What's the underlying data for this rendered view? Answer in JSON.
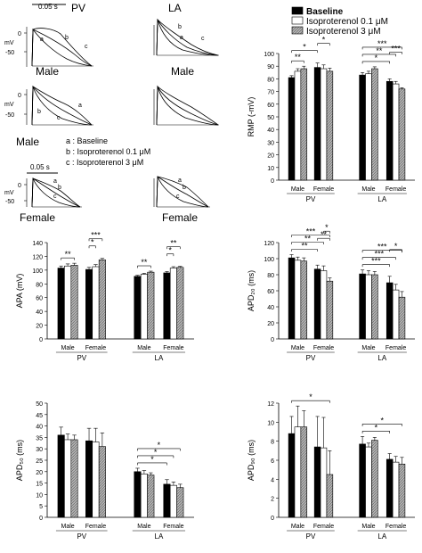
{
  "colors": {
    "baseline": "#000000",
    "iso01": "#ffffff",
    "iso3": "#a8a8a8",
    "stroke": "#000000"
  },
  "traces": {
    "headers": [
      "PV",
      "LA"
    ],
    "scale_top": "0.05 s",
    "scale_mid": "0.05 s",
    "row_labels": [
      "Male",
      "Male",
      "Female",
      "Female"
    ],
    "row_labels_mid_left": "Male",
    "mv_label": "mV",
    "tick_zero": "0",
    "tick_neg50": "-50",
    "trace_letters": [
      "a",
      "b",
      "c"
    ],
    "key": {
      "a": "a : Baseline",
      "b": "b : Isoproterenol 0.1 μM",
      "c": "c : Isoproterenol 3 μM"
    }
  },
  "legend": [
    "Baseline",
    "Isoproterenol 0.1 μM",
    "Isoproterenol 3 μM"
  ],
  "chart_data": [
    {
      "type": "bar",
      "ylabel": "RMP (-mV)",
      "ylim": [
        0,
        100
      ],
      "yticks": [
        0,
        10,
        20,
        30,
        40,
        50,
        60,
        70,
        80,
        90,
        100
      ],
      "subgroups": [
        "Male",
        "Female",
        "Male",
        "Female"
      ],
      "groups": [
        "PV",
        "LA"
      ],
      "series": [
        {
          "name": "Baseline",
          "values": [
            81,
            89,
            83,
            78
          ],
          "errors": [
            1.5,
            3.5,
            2,
            2
          ]
        },
        {
          "name": "Isoproterenol 0.1 μM",
          "values": [
            86,
            88,
            84,
            76
          ],
          "errors": [
            2,
            3,
            2,
            2
          ]
        },
        {
          "name": "Isoproterenol 3 μM",
          "values": [
            88,
            86,
            88,
            72
          ],
          "errors": [
            2,
            2.5,
            1.5,
            1
          ]
        }
      ],
      "significance": [
        {
          "from": [
            0,
            0
          ],
          "to": [
            0,
            2
          ],
          "label": "**"
        },
        {
          "from": [
            0,
            0
          ],
          "to": [
            1,
            0
          ],
          "label": "*"
        },
        {
          "from": [
            1,
            0
          ],
          "to": [
            1,
            2
          ],
          "label": "*"
        },
        {
          "from": [
            2,
            0
          ],
          "to": [
            3,
            0
          ],
          "label": "*"
        },
        {
          "from": [
            2,
            0
          ],
          "to": [
            3,
            1
          ],
          "label": "**"
        },
        {
          "from": [
            2,
            0
          ],
          "to": [
            3,
            2
          ],
          "label": "***"
        },
        {
          "from": [
            3,
            0
          ],
          "to": [
            3,
            2
          ],
          "label": "***"
        }
      ]
    },
    {
      "type": "bar",
      "ylabel": "APA (mV)",
      "ylim": [
        0,
        140
      ],
      "yticks": [
        0,
        20,
        40,
        60,
        80,
        100,
        120,
        140
      ],
      "subgroups": [
        "Male",
        "Female",
        "Male",
        "Female"
      ],
      "groups": [
        "PV",
        "LA"
      ],
      "series": [
        {
          "name": "Baseline",
          "values": [
            103,
            101,
            91,
            96
          ],
          "errors": [
            3,
            3,
            1.5,
            2
          ]
        },
        {
          "name": "Isoproterenol 0.1 μM",
          "values": [
            106,
            105,
            94,
            103
          ],
          "errors": [
            3,
            3,
            1.5,
            2
          ]
        },
        {
          "name": "Isoproterenol 3 μM",
          "values": [
            107,
            115,
            97,
            104
          ],
          "errors": [
            3,
            2,
            1.5,
            1.5
          ]
        }
      ],
      "significance": [
        {
          "from": [
            0,
            0
          ],
          "to": [
            0,
            2
          ],
          "label": "**"
        },
        {
          "from": [
            1,
            0
          ],
          "to": [
            1,
            1
          ],
          "label": "*"
        },
        {
          "from": [
            1,
            0
          ],
          "to": [
            1,
            2
          ],
          "label": "***"
        },
        {
          "from": [
            2,
            0
          ],
          "to": [
            2,
            2
          ],
          "label": "**"
        },
        {
          "from": [
            3,
            0
          ],
          "to": [
            3,
            1
          ],
          "label": "*"
        },
        {
          "from": [
            3,
            0
          ],
          "to": [
            3,
            2
          ],
          "label": "**"
        }
      ]
    },
    {
      "type": "bar",
      "ylabel": "APD₂₀ (ms)",
      "ylim": [
        0,
        120
      ],
      "yticks": [
        0,
        20,
        40,
        60,
        80,
        100,
        120
      ],
      "subgroups": [
        "Male",
        "Female",
        "Male",
        "Female"
      ],
      "groups": [
        "PV",
        "LA"
      ],
      "series": [
        {
          "name": "Baseline",
          "values": [
            101,
            87,
            81,
            70
          ],
          "errors": [
            4,
            5,
            5,
            8
          ]
        },
        {
          "name": "Isoproterenol 0.1 μM",
          "values": [
            98,
            85,
            80,
            61
          ],
          "errors": [
            4,
            6,
            5,
            7
          ]
        },
        {
          "name": "Isoproterenol 3 μM",
          "values": [
            97,
            72,
            80,
            52
          ],
          "errors": [
            4,
            4,
            4,
            7
          ]
        }
      ],
      "significance": [
        {
          "from": [
            0,
            0
          ],
          "to": [
            1,
            0
          ],
          "label": "**"
        },
        {
          "from": [
            0,
            0
          ],
          "to": [
            1,
            1
          ],
          "label": "**"
        },
        {
          "from": [
            0,
            0
          ],
          "to": [
            1,
            2
          ],
          "label": "***"
        },
        {
          "from": [
            1,
            0
          ],
          "to": [
            1,
            2
          ],
          "label": "**"
        },
        {
          "from": [
            1,
            1
          ],
          "to": [
            1,
            2
          ],
          "label": "*"
        },
        {
          "from": [
            2,
            0
          ],
          "to": [
            3,
            0
          ],
          "label": "***"
        },
        {
          "from": [
            2,
            0
          ],
          "to": [
            3,
            1
          ],
          "label": "***"
        },
        {
          "from": [
            2,
            0
          ],
          "to": [
            3,
            2
          ],
          "label": "***"
        },
        {
          "from": [
            3,
            0
          ],
          "to": [
            3,
            2
          ],
          "label": "*"
        }
      ]
    },
    {
      "type": "bar",
      "ylabel": "APD₅₀ (ms)",
      "ylim": [
        0,
        50
      ],
      "yticks": [
        0,
        5,
        10,
        15,
        20,
        25,
        30,
        35,
        40,
        45,
        50
      ],
      "subgroups": [
        "Male",
        "Female",
        "Male",
        "Female"
      ],
      "groups": [
        "PV",
        "LA"
      ],
      "series": [
        {
          "name": "Baseline",
          "values": [
            36,
            33.5,
            20,
            14.5
          ],
          "errors": [
            3.5,
            5.5,
            1.5,
            2
          ]
        },
        {
          "name": "Isoproterenol 0.1 μM",
          "values": [
            34,
            33,
            19,
            14
          ],
          "errors": [
            2.5,
            6,
            1.5,
            1.5
          ]
        },
        {
          "name": "Isoproterenol 3 μM",
          "values": [
            34,
            31,
            18.5,
            13
          ],
          "errors": [
            2,
            6,
            1,
            1.5
          ]
        }
      ],
      "significance": [
        {
          "from": [
            2,
            0
          ],
          "to": [
            3,
            0
          ],
          "label": "*"
        },
        {
          "from": [
            2,
            0
          ],
          "to": [
            3,
            1
          ],
          "label": "*"
        },
        {
          "from": [
            2,
            0
          ],
          "to": [
            3,
            2
          ],
          "label": "*"
        }
      ]
    },
    {
      "type": "bar",
      "ylabel": "APD₉₀ (ms)",
      "ylim": [
        0,
        12
      ],
      "yticks": [
        0,
        2,
        4,
        6,
        8,
        10,
        12
      ],
      "subgroups": [
        "Male",
        "Female",
        "Male",
        "Female"
      ],
      "groups": [
        "PV",
        "LA"
      ],
      "series": [
        {
          "name": "Baseline",
          "values": [
            8.8,
            7.4,
            7.7,
            6.1
          ],
          "errors": [
            1.8,
            3.2,
            0.8,
            0.6
          ]
        },
        {
          "name": "Isoproterenol 0.1 μM",
          "values": [
            9.5,
            7.3,
            7.4,
            5.8
          ],
          "errors": [
            2.2,
            3.2,
            0.4,
            0.6
          ]
        },
        {
          "name": "Isoproterenol 3 μM",
          "values": [
            9.5,
            4.5,
            8.1,
            5.6
          ],
          "errors": [
            1.7,
            2.5,
            0.3,
            0.7
          ]
        }
      ],
      "significance": [
        {
          "from": [
            0,
            0
          ],
          "to": [
            1,
            2
          ],
          "label": "*"
        },
        {
          "from": [
            2,
            0
          ],
          "to": [
            3,
            0
          ],
          "label": "*"
        },
        {
          "from": [
            2,
            0
          ],
          "to": [
            3,
            2
          ],
          "label": "*"
        }
      ]
    }
  ]
}
